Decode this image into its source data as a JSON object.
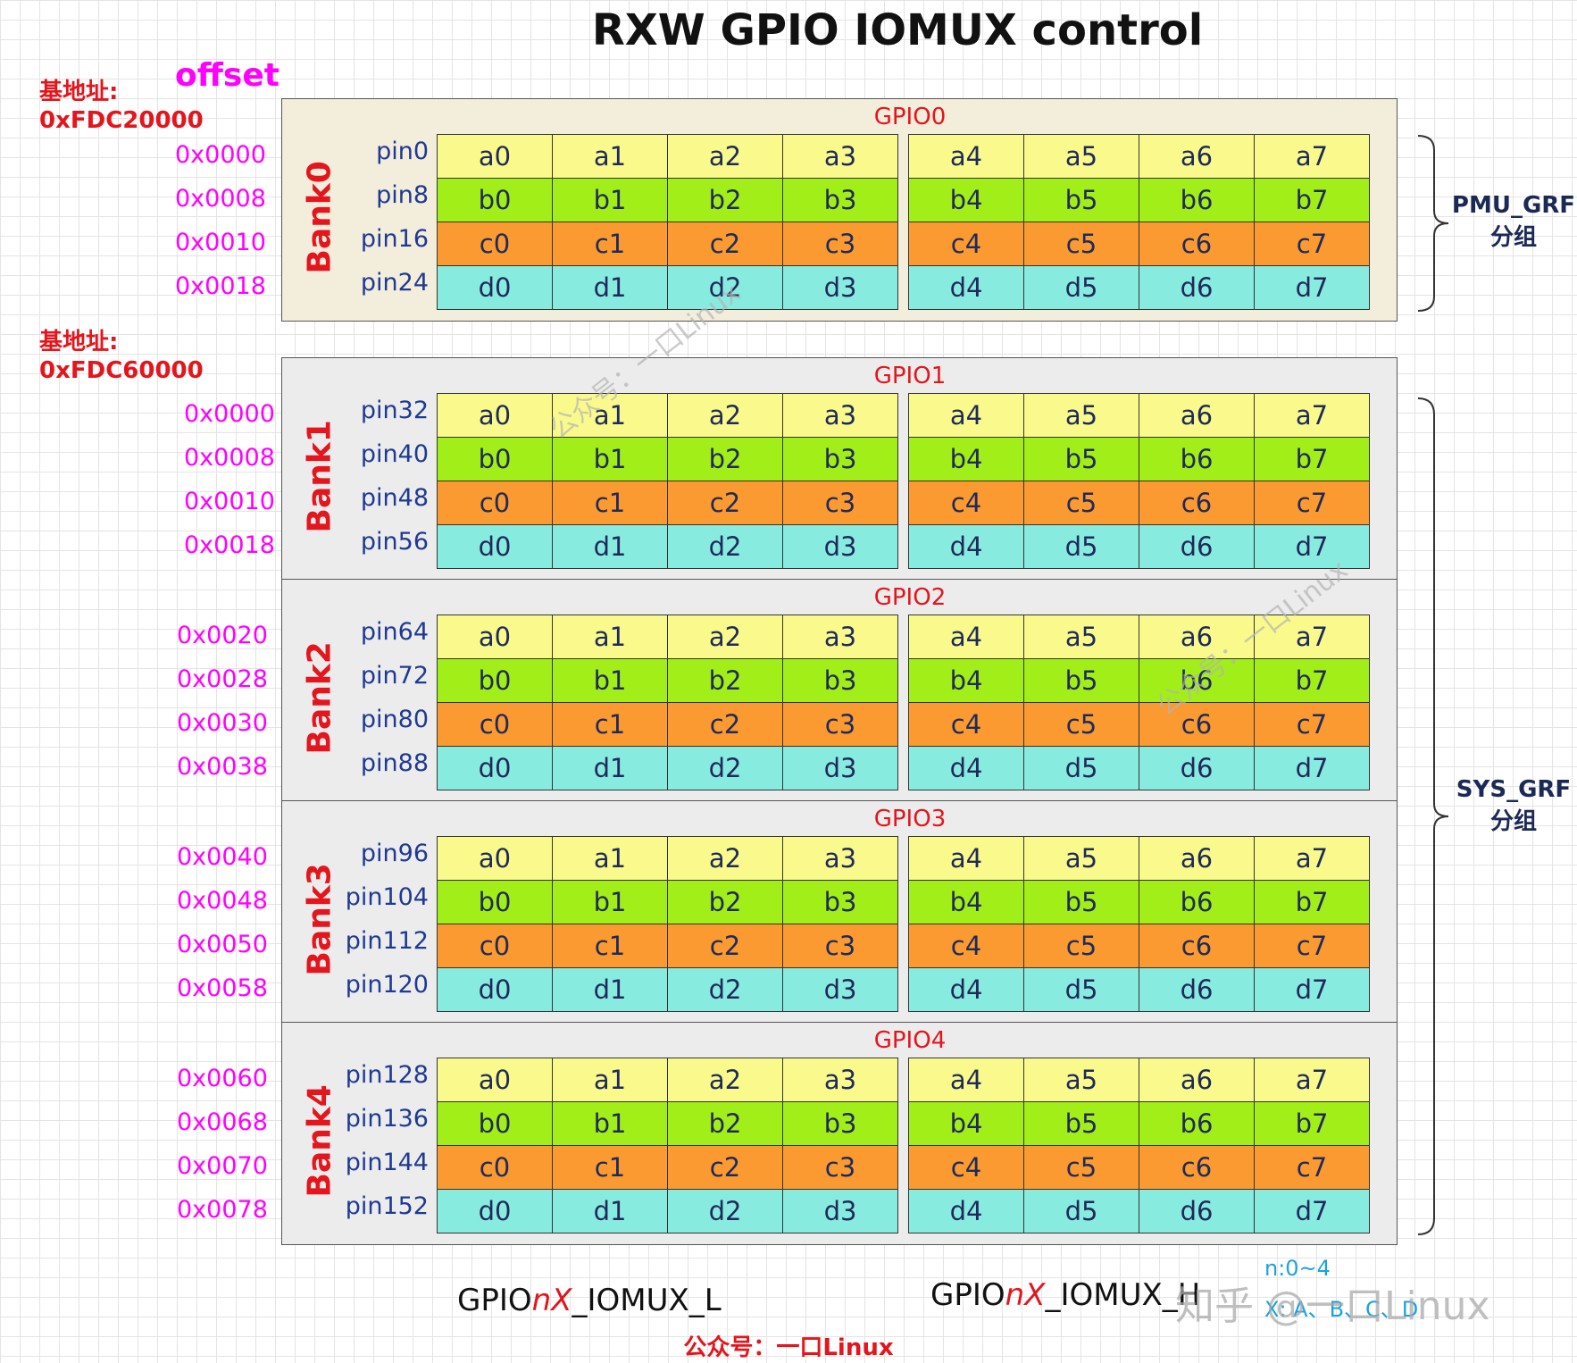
{
  "title": "RXW GPIO IOMUX control",
  "offset_header": "offset",
  "bases": [
    {
      "label": "基地址:",
      "value": "0xFDC20000"
    },
    {
      "label": "基地址:",
      "value": "0xFDC60000"
    }
  ],
  "banks": [
    {
      "bank": "Bank0",
      "gpio": "GPIO0",
      "pins": [
        "pin0",
        "pin8",
        "pin16",
        "pin24"
      ],
      "offsets": [
        "0x0000",
        "0x0008",
        "0x0010",
        "0x0018"
      ]
    },
    {
      "bank": "Bank1",
      "gpio": "GPIO1",
      "pins": [
        "pin32",
        "pin40",
        "pin48",
        "pin56"
      ],
      "offsets": [
        "0x0000",
        "0x0008",
        "0x0010",
        "0x0018"
      ]
    },
    {
      "bank": "Bank2",
      "gpio": "GPIO2",
      "pins": [
        "pin64",
        "pin72",
        "pin80",
        "pin88"
      ],
      "offsets": [
        "0x0020",
        "0x0028",
        "0x0030",
        "0x0038"
      ]
    },
    {
      "bank": "Bank3",
      "gpio": "GPIO3",
      "pins": [
        "pin96",
        "pin104",
        "pin112",
        "pin120"
      ],
      "offsets": [
        "0x0040",
        "0x0048",
        "0x0050",
        "0x0058"
      ]
    },
    {
      "bank": "Bank4",
      "gpio": "GPIO4",
      "pins": [
        "pin128",
        "pin136",
        "pin144",
        "pin152"
      ],
      "offsets": [
        "0x0060",
        "0x0068",
        "0x0070",
        "0x0078"
      ]
    }
  ],
  "cells": [
    [
      "a0",
      "a1",
      "a2",
      "a3",
      "a4",
      "a5",
      "a6",
      "a7"
    ],
    [
      "b0",
      "b1",
      "b2",
      "b3",
      "b4",
      "b5",
      "b6",
      "b7"
    ],
    [
      "c0",
      "c1",
      "c2",
      "c3",
      "c4",
      "c5",
      "c6",
      "c7"
    ],
    [
      "d0",
      "d1",
      "d2",
      "d3",
      "d4",
      "d5",
      "d6",
      "d7"
    ]
  ],
  "row_colors": [
    "#fafa8c",
    "#a2ee18",
    "#fa9a30",
    "#88ebe0"
  ],
  "groups": [
    {
      "line1": "PMU_GRF",
      "line2": "分组"
    },
    {
      "line1": "SYS_GRF",
      "line2": "分组"
    }
  ],
  "registers": {
    "left": {
      "prefix": "GPIO",
      "var": "nX",
      "suffix": "_IOMUX_L"
    },
    "right": {
      "prefix": "GPIO",
      "var": "nX",
      "suffix": "_IOMUX_H"
    }
  },
  "legend": {
    "n_range": "n:0~4",
    "x_range": "X: A、B、C、D"
  },
  "watermarks": [
    "公众号：一口Linux",
    "公众号：一口Linux",
    "知乎 @一口Linux"
  ],
  "footer": "公众号：一口Linux"
}
